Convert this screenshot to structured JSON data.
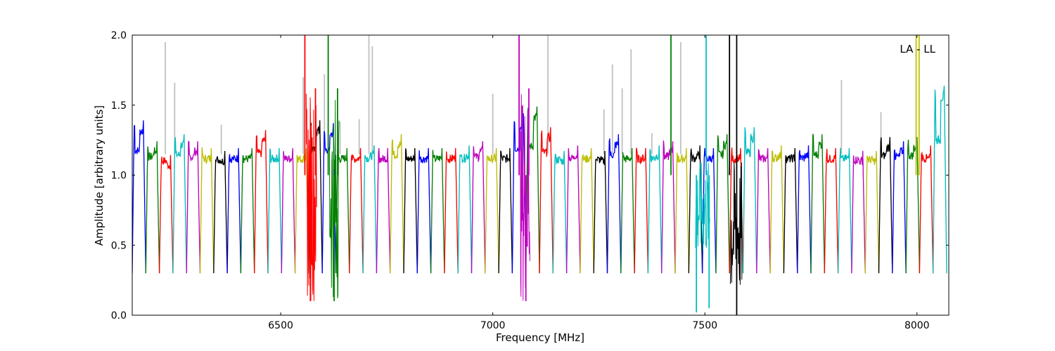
{
  "chart_data": {
    "type": "line",
    "title": "",
    "xlabel": "Frequency [MHz]",
    "ylabel": "Amplitude [arbitrary units]",
    "xlim": [
      6150,
      8075
    ],
    "ylim": [
      0.0,
      2.0
    ],
    "x_ticks": [
      6500,
      7000,
      7500,
      8000
    ],
    "x_tick_labels": [
      "6500",
      "7000",
      "7500",
      "8000"
    ],
    "y_ticks": [
      0.0,
      0.5,
      1.0,
      1.5,
      2.0
    ],
    "y_tick_labels": [
      "0.0",
      "0.5",
      "1.0",
      "1.5",
      "2.0"
    ],
    "annotation": "LA - LL",
    "annotation_position": "top-right",
    "grid": false,
    "band_edges_mhz": [
      6150,
      6182,
      6214,
      6246,
      6278,
      6310,
      6342,
      6374,
      6406,
      6438,
      6470,
      6502,
      6534,
      6566,
      6598,
      6630,
      6662,
      6694,
      6726,
      6758,
      6790,
      6822,
      6854,
      6886,
      6918,
      6950,
      6982,
      7014,
      7046,
      7078,
      7110,
      7142,
      7174,
      7206,
      7238,
      7270,
      7302,
      7334,
      7366,
      7398,
      7430,
      7462,
      7494,
      7526,
      7558,
      7590,
      7622,
      7654,
      7686,
      7718,
      7750,
      7782,
      7814,
      7846,
      7878,
      7910,
      7942,
      7974,
      8006,
      8038,
      8070
    ],
    "band_colors": [
      "#0000ff",
      "#008000",
      "#ff0000",
      "#00bfbf",
      "#bf00bf",
      "#bfbf00",
      "#000000"
    ],
    "band_peak_levels": [
      1.4,
      1.25,
      1.15,
      1.3,
      1.25,
      1.2,
      1.18,
      1.2,
      1.2,
      1.33,
      1.2,
      1.2,
      1.2,
      1.4,
      1.38,
      1.2,
      1.2,
      1.22,
      1.2,
      1.3,
      1.2,
      1.2,
      1.2,
      1.2,
      1.22,
      1.25,
      1.2,
      1.2,
      1.45,
      1.5,
      1.35,
      1.18,
      1.22,
      1.2,
      1.18,
      1.3,
      1.2,
      1.2,
      1.22,
      1.25,
      1.2,
      1.22,
      1.2,
      1.3,
      1.2,
      1.35,
      1.2,
      1.22,
      1.2,
      1.22,
      1.3,
      1.2,
      1.2,
      1.18,
      1.18,
      1.28,
      1.25,
      1.28,
      1.22,
      1.65,
      1.85
    ],
    "background_spikes": [
      {
        "x": 6228,
        "y": 1.95
      },
      {
        "x": 6250,
        "y": 1.66
      },
      {
        "x": 6360,
        "y": 1.36
      },
      {
        "x": 6553,
        "y": 1.7
      },
      {
        "x": 6603,
        "y": 1.72
      },
      {
        "x": 6640,
        "y": 1.38
      },
      {
        "x": 6685,
        "y": 1.4
      },
      {
        "x": 6708,
        "y": 2.0
      },
      {
        "x": 6716,
        "y": 1.92
      },
      {
        "x": 7000,
        "y": 1.58
      },
      {
        "x": 7130,
        "y": 2.0
      },
      {
        "x": 7262,
        "y": 1.47
      },
      {
        "x": 7282,
        "y": 1.79
      },
      {
        "x": 7305,
        "y": 1.62
      },
      {
        "x": 7326,
        "y": 1.9
      },
      {
        "x": 7375,
        "y": 1.3
      },
      {
        "x": 7443,
        "y": 1.95
      },
      {
        "x": 7822,
        "y": 1.68
      },
      {
        "x": 7915,
        "y": 1.45
      }
    ],
    "rfi_spikes": [
      {
        "x": 6557,
        "y": 2.0,
        "color": "#ff0000"
      },
      {
        "x": 6570,
        "y": 0.1,
        "color": "#ff0000"
      },
      {
        "x": 6582,
        "y": 1.62,
        "color": "#ff0000"
      },
      {
        "x": 6612,
        "y": 2.0,
        "color": "#008000"
      },
      {
        "x": 6626,
        "y": 0.1,
        "color": "#008000"
      },
      {
        "x": 6634,
        "y": 1.62,
        "color": "#008000"
      },
      {
        "x": 7062,
        "y": 2.0,
        "color": "#bf00bf"
      },
      {
        "x": 7078,
        "y": 0.1,
        "color": "#bf00bf"
      },
      {
        "x": 7085,
        "y": 1.62,
        "color": "#bf00bf"
      },
      {
        "x": 7420,
        "y": 2.0,
        "color": "#008000"
      },
      {
        "x": 7480,
        "y": 0.02,
        "color": "#00bfbf"
      },
      {
        "x": 7503,
        "y": 2.0,
        "color": "#00bfbf"
      },
      {
        "x": 7510,
        "y": 0.05,
        "color": "#00bfbf"
      },
      {
        "x": 7558,
        "y": 2.0,
        "color": "#000000"
      },
      {
        "x": 7575,
        "y": 2.0,
        "color": "#000000"
      },
      {
        "x": 7575,
        "y": 0.0,
        "color": "#000000"
      },
      {
        "x": 7998,
        "y": 2.0,
        "color": "#bfbf00"
      },
      {
        "x": 8005,
        "y": 2.0,
        "color": "#bfbf00"
      }
    ]
  }
}
